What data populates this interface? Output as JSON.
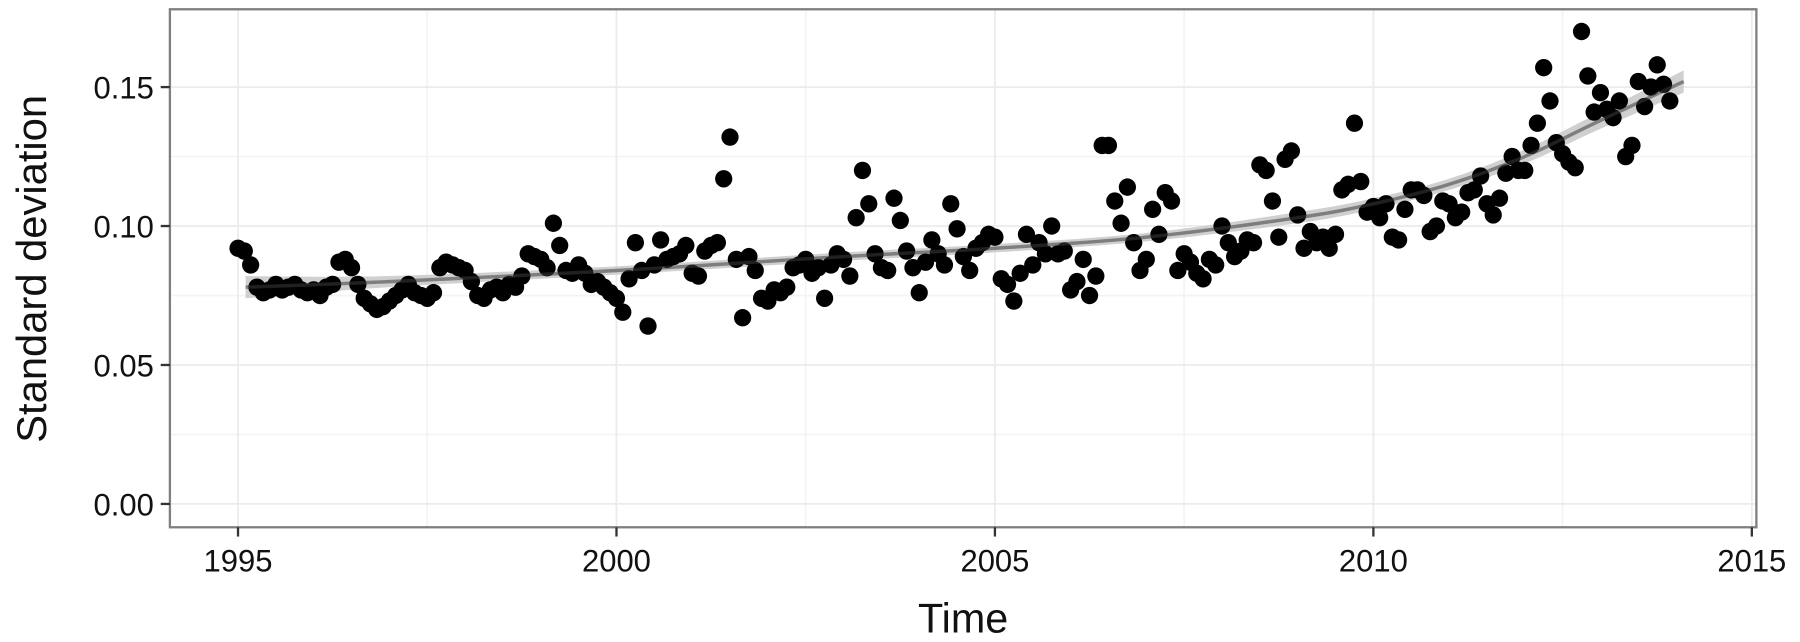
{
  "chart_data": {
    "type": "scatter",
    "xlabel": "Time",
    "ylabel": "Standard deviation",
    "xlim": [
      1994.1,
      2015.06
    ],
    "ylim": [
      -0.0084,
      0.178
    ],
    "x_ticks": [
      1995,
      2000,
      2005,
      2010,
      2015
    ],
    "x_tick_labels": [
      "1995",
      "2000",
      "2005",
      "2010",
      "2015"
    ],
    "y_ticks": [
      0.0,
      0.05,
      0.1,
      0.15
    ],
    "y_tick_labels": [
      "0.00",
      "0.05",
      "0.10",
      "0.15"
    ],
    "grid": true,
    "colors": {
      "points": "#000000",
      "smooth_line": "#3a3a3a",
      "confidence_band": "#c8c8c8",
      "panel_border": "#7f7f7f",
      "grid": "#ebebeb"
    },
    "points": {
      "x": [
        "1995-01",
        "1995-02",
        "1995-03",
        "1995-04",
        "1995-05",
        "1995-06",
        "1995-07",
        "1995-08",
        "1995-09",
        "1995-10",
        "1995-11",
        "1995-12",
        "1996-01",
        "1996-02",
        "1996-03",
        "1996-04",
        "1996-05",
        "1996-06",
        "1996-07",
        "1996-08",
        "1996-09",
        "1996-10",
        "1996-11",
        "1996-12",
        "1997-01",
        "1997-02",
        "1997-03",
        "1997-04",
        "1997-05",
        "1997-06",
        "1997-07",
        "1997-08",
        "1997-09",
        "1997-10",
        "1997-11",
        "1997-12",
        "1998-01",
        "1998-02",
        "1998-03",
        "1998-04",
        "1998-05",
        "1998-06",
        "1998-07",
        "1998-08",
        "1998-09",
        "1998-10",
        "1998-11",
        "1998-12",
        "1999-01",
        "1999-02",
        "1999-03",
        "1999-04",
        "1999-05",
        "1999-06",
        "1999-07",
        "1999-08",
        "1999-09",
        "1999-10",
        "1999-11",
        "1999-12",
        "2000-01",
        "2000-02",
        "2000-03",
        "2000-04",
        "2000-05",
        "2000-06",
        "2000-07",
        "2000-08",
        "2000-09",
        "2000-10",
        "2000-11",
        "2000-12",
        "2001-01",
        "2001-02",
        "2001-03",
        "2001-04",
        "2001-05",
        "2001-06",
        "2001-07",
        "2001-08",
        "2001-09",
        "2001-10",
        "2001-11",
        "2001-12",
        "2002-01",
        "2002-02",
        "2002-03",
        "2002-04",
        "2002-05",
        "2002-06",
        "2002-07",
        "2002-08",
        "2002-09",
        "2002-10",
        "2002-11",
        "2002-12",
        "2003-01",
        "2003-02",
        "2003-03",
        "2003-04",
        "2003-05",
        "2003-06",
        "2003-07",
        "2003-08",
        "2003-09",
        "2003-10",
        "2003-11",
        "2003-12",
        "2004-01",
        "2004-02",
        "2004-03",
        "2004-04",
        "2004-05",
        "2004-06",
        "2004-07",
        "2004-08",
        "2004-09",
        "2004-10",
        "2004-11",
        "2004-12",
        "2005-01",
        "2005-02",
        "2005-03",
        "2005-04",
        "2005-05",
        "2005-06",
        "2005-07",
        "2005-08",
        "2005-09",
        "2005-10",
        "2005-11",
        "2005-12",
        "2006-01",
        "2006-02",
        "2006-03",
        "2006-04",
        "2006-05",
        "2006-06",
        "2006-07",
        "2006-08",
        "2006-09",
        "2006-10",
        "2006-11",
        "2006-12",
        "2007-01",
        "2007-02",
        "2007-03",
        "2007-04",
        "2007-05",
        "2007-06",
        "2007-07",
        "2007-08",
        "2007-09",
        "2007-10",
        "2007-11",
        "2007-12",
        "2008-01",
        "2008-02",
        "2008-03",
        "2008-04",
        "2008-05",
        "2008-06",
        "2008-07",
        "2008-08",
        "2008-09",
        "2008-10",
        "2008-11",
        "2008-12",
        "2009-01",
        "2009-02",
        "2009-03",
        "2009-04",
        "2009-05",
        "2009-06",
        "2009-07",
        "2009-08",
        "2009-09",
        "2009-10",
        "2009-11",
        "2009-12",
        "2010-01",
        "2010-02",
        "2010-03",
        "2010-04",
        "2010-05",
        "2010-06",
        "2010-07",
        "2010-08",
        "2010-09",
        "2010-10",
        "2010-11",
        "2010-12",
        "2011-01",
        "2011-02",
        "2011-03",
        "2011-04",
        "2011-05",
        "2011-06",
        "2011-07",
        "2011-08",
        "2011-09",
        "2011-10",
        "2011-11",
        "2011-12",
        "2012-01",
        "2012-02",
        "2012-03",
        "2012-04",
        "2012-05",
        "2012-06",
        "2012-07",
        "2012-08",
        "2012-09",
        "2012-10",
        "2012-11",
        "2012-12",
        "2013-01",
        "2013-02",
        "2013-03",
        "2013-04",
        "2013-05",
        "2013-06",
        "2013-07",
        "2013-08",
        "2013-09",
        "2013-10",
        "2013-11",
        "2013-12"
      ],
      "y": [
        0.092,
        0.091,
        0.086,
        0.078,
        0.076,
        0.077,
        0.079,
        0.077,
        0.078,
        0.079,
        0.077,
        0.076,
        0.077,
        0.075,
        0.078,
        0.079,
        0.087,
        0.088,
        0.085,
        0.079,
        0.074,
        0.072,
        0.07,
        0.071,
        0.073,
        0.075,
        0.077,
        0.079,
        0.076,
        0.075,
        0.074,
        0.076,
        0.085,
        0.087,
        0.086,
        0.085,
        0.084,
        0.08,
        0.075,
        0.074,
        0.077,
        0.078,
        0.076,
        0.079,
        0.078,
        0.082,
        0.09,
        0.089,
        0.088,
        0.085,
        0.101,
        0.093,
        0.084,
        0.083,
        0.086,
        0.083,
        0.079,
        0.08,
        0.078,
        0.076,
        0.074,
        0.069,
        0.081,
        0.094,
        0.084,
        0.064,
        0.086,
        0.095,
        0.088,
        0.089,
        0.09,
        0.093,
        0.083,
        0.082,
        0.091,
        0.093,
        0.094,
        0.117,
        0.132,
        0.088,
        0.067,
        0.089,
        0.084,
        0.074,
        0.073,
        0.077,
        0.076,
        0.078,
        0.085,
        0.086,
        0.088,
        0.083,
        0.085,
        0.074,
        0.086,
        0.09,
        0.088,
        0.082,
        0.103,
        0.12,
        0.108,
        0.09,
        0.085,
        0.084,
        0.11,
        0.102,
        0.091,
        0.085,
        0.076,
        0.087,
        0.095,
        0.09,
        0.086,
        0.108,
        0.099,
        0.089,
        0.084,
        0.092,
        0.094,
        0.097,
        0.096,
        0.081,
        0.079,
        0.073,
        0.083,
        0.097,
        0.086,
        0.094,
        0.09,
        0.1,
        0.09,
        0.091,
        0.077,
        0.08,
        0.088,
        0.075,
        0.082,
        0.129,
        0.129,
        0.109,
        0.101,
        0.114,
        0.094,
        0.084,
        0.088,
        0.106,
        0.097,
        0.112,
        0.109,
        0.084,
        0.09,
        0.087,
        0.083,
        0.081,
        0.088,
        0.086,
        0.1,
        0.094,
        0.089,
        0.091,
        0.095,
        0.094,
        0.122,
        0.12,
        0.109,
        0.096,
        0.124,
        0.127,
        0.104,
        0.092,
        0.098,
        0.094,
        0.096,
        0.092,
        0.097,
        0.113,
        0.115,
        0.137,
        0.116,
        0.105,
        0.107,
        0.103,
        0.108,
        0.096,
        0.095,
        0.106,
        0.113,
        0.113,
        0.111,
        0.098,
        0.1,
        0.109,
        0.108,
        0.103,
        0.105,
        0.112,
        0.113,
        0.118,
        0.108,
        0.104,
        0.11,
        0.119,
        0.125,
        0.12,
        0.12,
        0.129,
        0.137,
        0.157,
        0.145,
        0.13,
        0.126,
        0.123,
        0.121,
        0.17,
        0.154,
        0.141,
        0.148,
        0.142,
        0.139,
        0.145,
        0.125,
        0.129,
        0.152,
        0.143,
        0.15,
        0.158,
        0.151,
        0.145
      ]
    },
    "smooth": {
      "x": [
        1995.1,
        1997,
        2000,
        2003,
        2005,
        2007,
        2009,
        2010,
        2011,
        2012,
        2013,
        2014.1
      ],
      "y": [
        0.078,
        0.08,
        0.084,
        0.089,
        0.092,
        0.096,
        0.103,
        0.108,
        0.115,
        0.125,
        0.138,
        0.152
      ],
      "ci_halfwidth": [
        0.004,
        0.002,
        0.0015,
        0.0015,
        0.0015,
        0.0015,
        0.002,
        0.002,
        0.002,
        0.0025,
        0.003,
        0.004
      ]
    }
  }
}
